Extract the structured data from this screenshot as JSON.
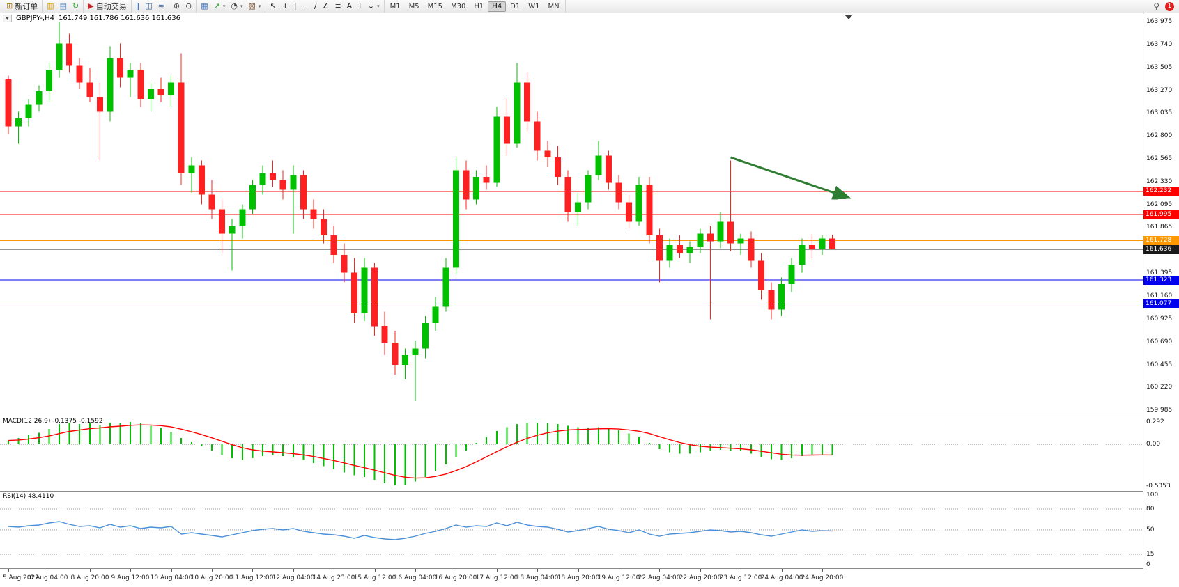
{
  "toolbar": {
    "groups": [
      {
        "name": "trade-group",
        "items": [
          {
            "name": "new-order-button",
            "icon": "new-order-icon",
            "glyph": "⊞",
            "color": "#b08020",
            "label": "新订单"
          }
        ]
      },
      {
        "name": "window-group",
        "items": [
          {
            "name": "charts-button",
            "icon": "chart-window-icon",
            "glyph": "▥",
            "color": "#d69a00"
          },
          {
            "name": "profiles-button",
            "icon": "profiles-icon",
            "glyph": "▤",
            "color": "#4a7ebf"
          },
          {
            "name": "refresh-button",
            "icon": "refresh-icon",
            "glyph": "↻",
            "color": "#2e9e2e"
          }
        ]
      },
      {
        "name": "autotrading-group",
        "items": [
          {
            "name": "autotrading-button",
            "icon": "autotrading-play-icon",
            "glyph": "▶",
            "color": "#c62828",
            "label": "自动交易"
          }
        ]
      },
      {
        "name": "chart-type-group",
        "items": [
          {
            "name": "bar-chart-button",
            "icon": "bar-chart-icon",
            "glyph": "‖",
            "color": "#2f5fa3"
          },
          {
            "name": "candlestick-chart-button",
            "icon": "candlestick-icon",
            "glyph": "◫",
            "color": "#2f5fa3"
          },
          {
            "name": "line-chart-button",
            "icon": "line-chart-icon",
            "glyph": "≈",
            "color": "#2f5fa3"
          }
        ]
      },
      {
        "name": "zoom-group",
        "items": [
          {
            "name": "zoom-in-button",
            "icon": "zoom-in-icon",
            "glyph": "⊕",
            "color": "#444444"
          },
          {
            "name": "zoom-out-button",
            "icon": "zoom-out-icon",
            "glyph": "⊖",
            "color": "#444444"
          }
        ]
      },
      {
        "name": "window-tools-group",
        "items": [
          {
            "name": "tile-windows-button",
            "icon": "tile-windows-icon",
            "glyph": "▦",
            "color": "#3f6fb5"
          },
          {
            "name": "indicators-button",
            "icon": "indicators-icon",
            "glyph": "↗",
            "color": "#2e9e2e",
            "dropdown": true
          },
          {
            "name": "periods-button",
            "icon": "clock-icon",
            "glyph": "◔",
            "color": "#444444",
            "dropdown": true
          },
          {
            "name": "templates-button",
            "icon": "templates-icon",
            "glyph": "▨",
            "color": "#7a5230",
            "dropdown": true
          }
        ]
      },
      {
        "name": "drawing-tools-group",
        "items": [
          {
            "name": "cursor-button",
            "icon": "cursor-icon",
            "glyph": "↖",
            "color": "#222222"
          },
          {
            "name": "crosshair-button",
            "icon": "crosshair-icon",
            "glyph": "+",
            "color": "#222222"
          },
          {
            "name": "vertical-line-button",
            "icon": "vertical-line-icon",
            "glyph": "|",
            "color": "#222222"
          },
          {
            "name": "horizontal-line-button",
            "icon": "horizontal-line-icon",
            "glyph": "−",
            "color": "#222222"
          },
          {
            "name": "trendline-button",
            "icon": "trendline-icon",
            "glyph": "∕",
            "color": "#222222"
          },
          {
            "name": "channel-button",
            "icon": "channel-icon",
            "glyph": "∠",
            "color": "#222222"
          },
          {
            "name": "fibonacci-button",
            "icon": "fibonacci-icon",
            "glyph": "≡",
            "color": "#222222"
          },
          {
            "name": "text-button",
            "icon": "text-icon",
            "glyph": "A",
            "color": "#222222"
          },
          {
            "name": "label-button",
            "icon": "text-label-icon",
            "glyph": "T",
            "color": "#222222"
          },
          {
            "name": "arrows-button",
            "icon": "arrow-objects-icon",
            "glyph": "↓",
            "color": "#222222",
            "dropdown": true
          }
        ]
      }
    ],
    "timeframes": [
      "M1",
      "M5",
      "M15",
      "M30",
      "H1",
      "H4",
      "D1",
      "W1",
      "MN"
    ],
    "active_timeframe": "H4",
    "search_glyph": "⚲",
    "notification_count": "1"
  },
  "chart_header": {
    "collapse_glyph": "▾",
    "symbol": "GBPJPY-,H4",
    "ohlc": "161.749 161.786 161.636 161.636"
  },
  "price_axis": {
    "labels": [
      "163.975",
      "163.740",
      "163.505",
      "163.270",
      "163.035",
      "162.800",
      "162.565",
      "162.330",
      "162.095",
      "161.865",
      "161.630",
      "161.395",
      "161.160",
      "160.925",
      "160.690",
      "160.455",
      "160.220",
      "159.985"
    ]
  },
  "hlines": [
    {
      "name": "resistance-line-upper",
      "price": 162.232,
      "label": "162.232",
      "color": "#ff0000"
    },
    {
      "name": "resistance-line-lower",
      "price": 161.995,
      "label": "161.995",
      "color": "#ff0000"
    },
    {
      "name": "pivot-line",
      "price": 161.728,
      "label": "161.728",
      "color": "#ff9800"
    },
    {
      "name": "support-line-upper",
      "price": 161.323,
      "label": "161.323",
      "color": "#0000ee"
    },
    {
      "name": "support-line-lower",
      "price": 161.077,
      "label": "161.077",
      "color": "#0000ee"
    }
  ],
  "current_price": {
    "price": 161.636,
    "label": "161.636",
    "color": "#1a1a1a"
  },
  "time_axis": {
    "labels": [
      "5 Aug 2022",
      "8 Aug 04:00",
      "8 Aug 20:00",
      "9 Aug 12:00",
      "10 Aug 04:00",
      "10 Aug 20:00",
      "11 Aug 12:00",
      "12 Aug 04:00",
      "14 Aug 23:00",
      "15 Aug 12:00",
      "16 Aug 04:00",
      "16 Aug 20:00",
      "17 Aug 12:00",
      "18 Aug 04:00",
      "18 Aug 20:00",
      "19 Aug 12:00",
      "22 Aug 04:00",
      "22 Aug 20:00",
      "23 Aug 12:00",
      "24 Aug 04:00",
      "24 Aug 20:00"
    ]
  },
  "indicators": {
    "macd": {
      "label": "MACD(12,26,9) -0.1375 -0.1592",
      "main_value": -0.1375,
      "signal_value": -0.1592,
      "axis": [
        {
          "text": "0.292",
          "value": 0.292
        },
        {
          "text": "0.00",
          "value": 0
        },
        {
          "text": "-0.5353",
          "value": -0.5353
        }
      ],
      "values": [
        0.05,
        0.08,
        0.12,
        0.15,
        0.2,
        0.26,
        0.28,
        0.26,
        0.27,
        0.25,
        0.28,
        0.27,
        0.29,
        0.27,
        0.24,
        0.21,
        0.16,
        0.08,
        0.03,
        -0.02,
        -0.08,
        -0.14,
        -0.18,
        -0.2,
        -0.18,
        -0.15,
        -0.14,
        -0.15,
        -0.17,
        -0.2,
        -0.24,
        -0.28,
        -0.32,
        -0.36,
        -0.4,
        -0.42,
        -0.46,
        -0.5,
        -0.53,
        -0.52,
        -0.48,
        -0.42,
        -0.34,
        -0.26,
        -0.16,
        -0.08,
        0.02,
        0.1,
        0.17,
        0.22,
        0.26,
        0.28,
        0.28,
        0.27,
        0.26,
        0.24,
        0.22,
        0.21,
        0.22,
        0.21,
        0.18,
        0.14,
        0.1,
        0.02,
        -0.06,
        -0.1,
        -0.12,
        -0.12,
        -0.1,
        -0.08,
        -0.07,
        -0.08,
        -0.09,
        -0.12,
        -0.16,
        -0.19,
        -0.2,
        -0.18,
        -0.15,
        -0.13,
        -0.13,
        -0.1375
      ]
    },
    "rsi": {
      "label": "RSI(14) 48.4110",
      "value": 48.411,
      "axis": [
        {
          "text": "100",
          "value": 100
        },
        {
          "text": "80",
          "value": 80
        },
        {
          "text": "50",
          "value": 50
        },
        {
          "text": "15",
          "value": 15
        },
        {
          "text": "0",
          "value": 0
        }
      ],
      "levels": [
        80,
        50,
        15
      ],
      "values": [
        55,
        54,
        56,
        57,
        60,
        62,
        58,
        55,
        56,
        53,
        58,
        54,
        56,
        52,
        54,
        53,
        55,
        44,
        46,
        44,
        42,
        40,
        43,
        46,
        49,
        51,
        52,
        50,
        52,
        48,
        46,
        44,
        43,
        41,
        38,
        42,
        39,
        37,
        36,
        38,
        41,
        45,
        48,
        52,
        57,
        54,
        56,
        55,
        60,
        56,
        61,
        57,
        55,
        54,
        51,
        47,
        49,
        52,
        55,
        51,
        49,
        46,
        50,
        44,
        41,
        44,
        45,
        46,
        48,
        50,
        49,
        47,
        48,
        46,
        43,
        41,
        44,
        47,
        50,
        48,
        49,
        48.41
      ]
    }
  },
  "annotations": {
    "trend_arrow": {
      "from_index": 71,
      "from_price": 162.58,
      "to_index": 82.5,
      "to_price": 162.17,
      "color": "#2f7d32"
    }
  },
  "colors": {
    "bull": "#00c000",
    "bear": "#ff2121",
    "macd_histogram": "#00c000",
    "macd_signal": "#ff0000",
    "rsi": "#4a90d9",
    "level_dotted": "#999999"
  },
  "chart_data": {
    "type": "candlestick",
    "symbol": "GBPJPY-",
    "timeframe": "H4",
    "last_ohlc": {
      "open": 161.749,
      "high": 161.786,
      "low": 161.636,
      "close": 161.636
    },
    "price_axis_range": [
      159.985,
      163.975
    ],
    "candles": [
      [
        163.38,
        163.42,
        162.82,
        162.9
      ],
      [
        162.9,
        163.05,
        162.72,
        162.98
      ],
      [
        162.98,
        163.18,
        162.9,
        163.12
      ],
      [
        163.12,
        163.32,
        163.05,
        163.26
      ],
      [
        163.26,
        163.55,
        163.15,
        163.48
      ],
      [
        163.48,
        163.97,
        163.4,
        163.75
      ],
      [
        163.75,
        163.85,
        163.45,
        163.52
      ],
      [
        163.52,
        163.6,
        163.28,
        163.35
      ],
      [
        163.35,
        163.5,
        163.15,
        163.2
      ],
      [
        163.2,
        163.35,
        162.55,
        163.05
      ],
      [
        163.05,
        163.72,
        162.95,
        163.6
      ],
      [
        163.6,
        163.75,
        163.3,
        163.4
      ],
      [
        163.4,
        163.55,
        163.2,
        163.48
      ],
      [
        163.48,
        163.55,
        163.1,
        163.18
      ],
      [
        163.18,
        163.35,
        163.05,
        163.28
      ],
      [
        163.28,
        163.4,
        163.15,
        163.22
      ],
      [
        163.22,
        163.42,
        163.1,
        163.35
      ],
      [
        163.35,
        163.65,
        162.3,
        162.42
      ],
      [
        162.42,
        162.58,
        162.22,
        162.5
      ],
      [
        162.5,
        162.55,
        162.1,
        162.2
      ],
      [
        162.2,
        162.35,
        161.95,
        162.05
      ],
      [
        162.05,
        162.15,
        161.6,
        161.8
      ],
      [
        161.8,
        161.95,
        161.42,
        161.88
      ],
      [
        161.88,
        162.1,
        161.75,
        162.05
      ],
      [
        162.05,
        162.35,
        162.0,
        162.3
      ],
      [
        162.3,
        162.5,
        162.2,
        162.42
      ],
      [
        162.42,
        162.55,
        162.28,
        162.35
      ],
      [
        162.35,
        162.45,
        162.15,
        162.25
      ],
      [
        162.25,
        162.5,
        161.8,
        162.4
      ],
      [
        162.4,
        162.45,
        161.95,
        162.05
      ],
      [
        162.05,
        162.15,
        161.85,
        161.95
      ],
      [
        161.95,
        162.05,
        161.7,
        161.78
      ],
      [
        161.78,
        161.88,
        161.5,
        161.58
      ],
      [
        161.58,
        161.7,
        161.3,
        161.4
      ],
      [
        161.4,
        161.55,
        160.88,
        160.98
      ],
      [
        160.98,
        161.55,
        160.9,
        161.45
      ],
      [
        161.45,
        161.5,
        160.75,
        160.85
      ],
      [
        160.85,
        161.0,
        160.55,
        160.68
      ],
      [
        160.68,
        160.8,
        160.35,
        160.45
      ],
      [
        160.45,
        160.62,
        160.3,
        160.55
      ],
      [
        160.55,
        160.7,
        160.08,
        160.62
      ],
      [
        160.62,
        160.95,
        160.52,
        160.88
      ],
      [
        160.88,
        161.15,
        160.8,
        161.05
      ],
      [
        161.05,
        161.55,
        161.0,
        161.45
      ],
      [
        161.45,
        162.58,
        161.38,
        162.45
      ],
      [
        162.45,
        162.55,
        162.05,
        162.15
      ],
      [
        162.15,
        162.45,
        162.1,
        162.38
      ],
      [
        162.38,
        162.5,
        162.25,
        162.32
      ],
      [
        162.32,
        163.1,
        162.28,
        163.0
      ],
      [
        163.0,
        163.18,
        162.6,
        162.72
      ],
      [
        162.72,
        163.55,
        162.68,
        163.35
      ],
      [
        163.35,
        163.45,
        162.85,
        162.95
      ],
      [
        162.95,
        163.05,
        162.55,
        162.65
      ],
      [
        162.65,
        162.75,
        162.48,
        162.58
      ],
      [
        162.58,
        162.7,
        162.3,
        162.38
      ],
      [
        162.38,
        162.45,
        161.92,
        162.02
      ],
      [
        162.02,
        162.22,
        161.88,
        162.12
      ],
      [
        162.12,
        162.45,
        162.05,
        162.4
      ],
      [
        162.4,
        162.75,
        162.35,
        162.6
      ],
      [
        162.6,
        162.65,
        162.25,
        162.32
      ],
      [
        162.32,
        162.4,
        162.05,
        162.12
      ],
      [
        162.12,
        162.2,
        161.85,
        161.92
      ],
      [
        161.92,
        162.38,
        161.88,
        162.3
      ],
      [
        162.3,
        162.38,
        161.7,
        161.78
      ],
      [
        161.78,
        161.85,
        161.3,
        161.52
      ],
      [
        161.52,
        161.75,
        161.45,
        161.68
      ],
      [
        161.68,
        161.78,
        161.55,
        161.6
      ],
      [
        161.6,
        161.72,
        161.5,
        161.66
      ],
      [
        161.66,
        161.85,
        161.6,
        161.8
      ],
      [
        161.8,
        161.88,
        160.92,
        161.72
      ],
      [
        161.72,
        162.02,
        161.65,
        161.92
      ],
      [
        161.92,
        162.55,
        161.62,
        161.7
      ],
      [
        161.7,
        161.8,
        161.58,
        161.75
      ],
      [
        161.75,
        161.82,
        161.45,
        161.52
      ],
      [
        161.52,
        161.6,
        161.12,
        161.22
      ],
      [
        161.22,
        161.3,
        160.92,
        161.02
      ],
      [
        161.02,
        161.35,
        160.95,
        161.28
      ],
      [
        161.28,
        161.55,
        161.2,
        161.48
      ],
      [
        161.48,
        161.75,
        161.4,
        161.68
      ],
      [
        161.68,
        161.79,
        161.55,
        161.64
      ],
      [
        161.64,
        161.78,
        161.58,
        161.749
      ],
      [
        161.749,
        161.786,
        161.636,
        161.636
      ]
    ]
  }
}
